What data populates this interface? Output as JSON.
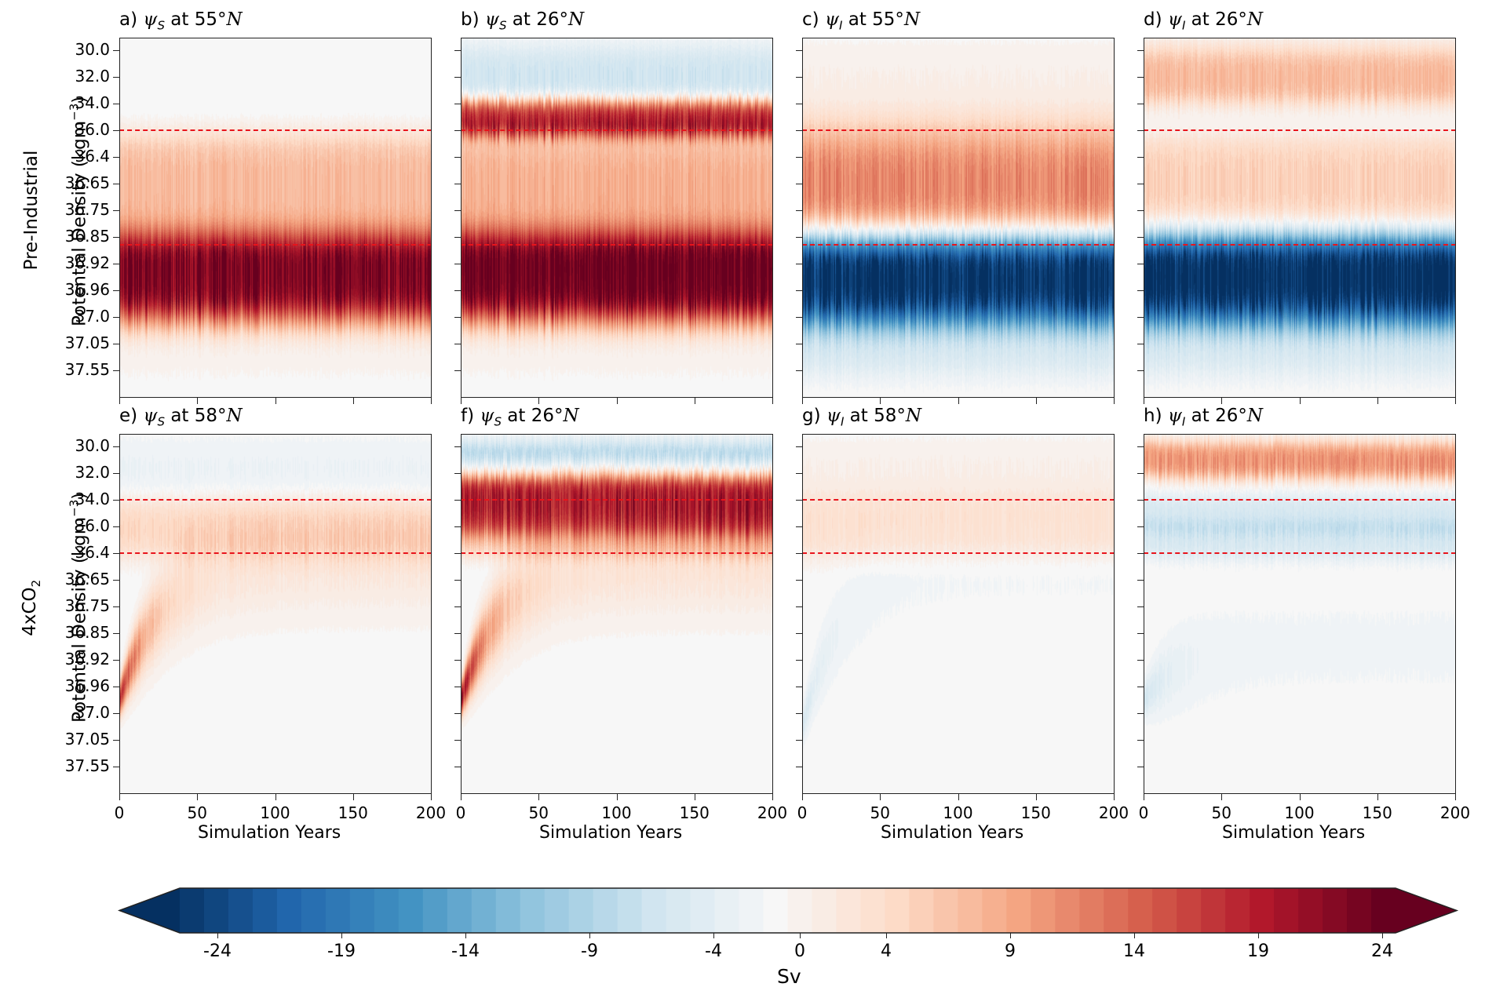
{
  "figure": {
    "row_labels": [
      {
        "line1": "Pre-Industrial",
        "line2": "Potential Density (kgm",
        "line2_sup": "−3",
        "line2_end": ")"
      },
      {
        "line1": "4xCO",
        "line1_sub": "2",
        "line2": "Potential Density (kgm",
        "line2_sup": "−3",
        "line2_end": ")"
      }
    ],
    "x_axis_title": "Simulation Years",
    "colorbar": {
      "label": "Sv",
      "ticks": [
        "-24",
        "-19",
        "-14",
        "-9",
        "-4",
        "0",
        "4",
        "9",
        "14",
        "19",
        "24"
      ],
      "extend": "both",
      "cmap": "RdBu_r"
    }
  },
  "chart_data": {
    "type": "heatmap",
    "x": {
      "label": "Simulation Years",
      "range": [
        0,
        200
      ],
      "ticks": [
        0,
        50,
        100,
        150,
        200
      ]
    },
    "y": {
      "label_units": "kgm^-3",
      "ticks": [
        "30.0",
        "32.0",
        "34.0",
        "36.0",
        "36.4",
        "36.65",
        "36.75",
        "36.85",
        "36.92",
        "36.96",
        "37.0",
        "37.05",
        "37.55"
      ],
      "inverted": true
    },
    "colorbar": {
      "label": "Sv",
      "range": [
        -25,
        25
      ],
      "levels_step": 1,
      "ticks": [
        -24,
        -19,
        -14,
        -9,
        -4,
        0,
        4,
        9,
        14,
        19,
        24
      ]
    },
    "panels": [
      {
        "id": "a",
        "label": "a)",
        "var": "ψ",
        "sub": "S",
        "lat": "55°",
        "hemi": "N",
        "row": "Pre-Industrial",
        "dashed_density": [
          36.0,
          36.87
        ],
        "bands": [
          {
            "from": "34.0",
            "to": "36.0",
            "sv": -1.5,
            "spin": 0
          },
          {
            "from": "36.0",
            "to": "36.85",
            "sv": 8,
            "spin": 0
          },
          {
            "from": "36.85",
            "to": "37.0",
            "sv": 24,
            "spin": 0
          },
          {
            "from": "37.0",
            "to": "37.55",
            "sv": 1,
            "spin": 0
          }
        ]
      },
      {
        "id": "b",
        "label": "b)",
        "var": "ψ",
        "sub": "S",
        "lat": "26°",
        "hemi": "N",
        "row": "Pre-Industrial",
        "dashed_density": [
          36.0,
          36.87
        ],
        "bands": [
          {
            "from": "30.0",
            "to": "34.0",
            "sv": -5,
            "spin": 0
          },
          {
            "from": "34.0",
            "to": "36.0",
            "sv": 18,
            "spin": 0
          },
          {
            "from": "36.0",
            "to": "36.85",
            "sv": 9,
            "spin": 0
          },
          {
            "from": "36.85",
            "to": "37.0",
            "sv": 26,
            "spin": 0
          },
          {
            "from": "37.0",
            "to": "37.55",
            "sv": 1,
            "spin": 0
          }
        ]
      },
      {
        "id": "c",
        "label": "c)",
        "var": "ψ",
        "sub": "I",
        "lat": "55°",
        "hemi": "N",
        "row": "Pre-Industrial",
        "dashed_density": [
          36.0,
          36.87
        ],
        "bands": [
          {
            "from": "30.0",
            "to": "36.0",
            "sv": 1.5,
            "spin": 0
          },
          {
            "from": "36.0",
            "to": "36.85",
            "sv": 12,
            "spin": 0
          },
          {
            "from": "36.85",
            "to": "37.0",
            "sv": -26,
            "spin": 0
          },
          {
            "from": "37.0",
            "to": "37.55",
            "sv": -4,
            "spin": 0
          }
        ]
      },
      {
        "id": "d",
        "label": "d)",
        "var": "ψ",
        "sub": "I",
        "lat": "26°",
        "hemi": "N",
        "row": "Pre-Industrial",
        "dashed_density": [
          36.0,
          36.87
        ],
        "bands": [
          {
            "from": "30.0",
            "to": "34.0",
            "sv": 8,
            "spin": 0
          },
          {
            "from": "34.0",
            "to": "36.0",
            "sv": -2,
            "spin": 0
          },
          {
            "from": "36.0",
            "to": "36.85",
            "sv": 6,
            "spin": 0
          },
          {
            "from": "36.85",
            "to": "37.0",
            "sv": -27,
            "spin": 0
          },
          {
            "from": "37.0",
            "to": "37.55",
            "sv": -4,
            "spin": 0
          }
        ]
      },
      {
        "id": "e",
        "label": "e)",
        "var": "ψ",
        "sub": "S",
        "lat": "58°",
        "hemi": "N",
        "row": "4xCO2",
        "dashed_density": [
          34.0,
          36.4
        ],
        "bands": [
          {
            "from": "30.0",
            "to": "34.0",
            "sv": -1.5,
            "spin": 0
          },
          {
            "from": "34.0",
            "to": "36.4",
            "sv": 5,
            "spin": 0
          },
          {
            "from": "36.4",
            "to": "37.0",
            "sv": 18,
            "spin": 1
          }
        ]
      },
      {
        "id": "f",
        "label": "f)",
        "var": "ψ",
        "sub": "S",
        "lat": "26°",
        "hemi": "N",
        "row": "4xCO2",
        "dashed_density": [
          34.0,
          36.4
        ],
        "bands": [
          {
            "from": "30.0",
            "to": "32.0",
            "sv": -8,
            "spin": 0
          },
          {
            "from": "32.0",
            "to": "36.0",
            "sv": 20,
            "spin": 0
          },
          {
            "from": "36.0",
            "to": "36.4",
            "sv": 5,
            "spin": 0
          },
          {
            "from": "36.4",
            "to": "37.0",
            "sv": 22,
            "spin": 1
          }
        ]
      },
      {
        "id": "g",
        "label": "g)",
        "var": "ψ",
        "sub": "I",
        "lat": "58°",
        "hemi": "N",
        "row": "4xCO2",
        "dashed_density": [
          34.0,
          36.4
        ],
        "bands": [
          {
            "from": "30.0",
            "to": "34.0",
            "sv": 1.5,
            "spin": 0
          },
          {
            "from": "34.0",
            "to": "36.4",
            "sv": 4,
            "spin": 0
          },
          {
            "from": "36.4",
            "to": "37.05",
            "sv": -4,
            "spin": 1
          }
        ]
      },
      {
        "id": "h",
        "label": "h)",
        "var": "ψ",
        "sub": "I",
        "lat": "26°",
        "hemi": "N",
        "row": "4xCO2",
        "dashed_density": [
          34.0,
          36.4
        ],
        "bands": [
          {
            "from": "30.0",
            "to": "32.0",
            "sv": 11,
            "spin": 0
          },
          {
            "from": "34.0",
            "to": "36.0",
            "sv": -4,
            "spin": 0
          },
          {
            "from": "36.0",
            "to": "36.4",
            "sv": -4,
            "spin": 0
          },
          {
            "from": "36.85",
            "to": "37.0",
            "sv": -5,
            "spin": 1
          }
        ]
      }
    ]
  }
}
